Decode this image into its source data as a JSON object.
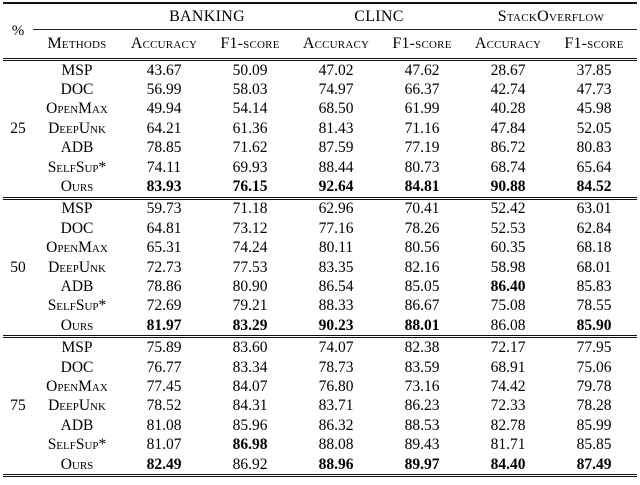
{
  "table": {
    "percent_label": "%",
    "methods_label": "Methods",
    "groups": [
      "BANKING",
      "CLINC",
      "StackOverflow"
    ],
    "subheaders": [
      "Accuracy",
      "F1-score"
    ],
    "blocks": [
      {
        "percent": "25",
        "rows": [
          {
            "method": "MSP",
            "values": [
              "43.67",
              "50.09",
              "47.02",
              "47.62",
              "28.67",
              "37.85"
            ]
          },
          {
            "method": "DOC",
            "values": [
              "56.99",
              "58.03",
              "74.97",
              "66.37",
              "42.74",
              "47.73"
            ]
          },
          {
            "method": "OpenMax",
            "values": [
              "49.94",
              "54.14",
              "68.50",
              "61.99",
              "40.28",
              "45.98"
            ]
          },
          {
            "method": "DeepUnk",
            "values": [
              "64.21",
              "61.36",
              "81.43",
              "71.16",
              "47.84",
              "52.05"
            ]
          },
          {
            "method": "ADB",
            "values": [
              "78.85",
              "71.62",
              "87.59",
              "77.19",
              "86.72",
              "80.83"
            ]
          },
          {
            "method": "SelfSup*",
            "values": [
              "74.11",
              "69.93",
              "88.44",
              "80.73",
              "68.74",
              "65.64"
            ]
          },
          {
            "method": "Ours",
            "values": [
              "83.93",
              "76.15",
              "92.64",
              "84.81",
              "90.88",
              "84.52"
            ]
          }
        ]
      },
      {
        "percent": "50",
        "rows": [
          {
            "method": "MSP",
            "values": [
              "59.73",
              "71.18",
              "62.96",
              "70.41",
              "52.42",
              "63.01"
            ]
          },
          {
            "method": "DOC",
            "values": [
              "64.81",
              "73.12",
              "77.16",
              "78.26",
              "52.53",
              "62.84"
            ]
          },
          {
            "method": "OpenMax",
            "values": [
              "65.31",
              "74.24",
              "80.11",
              "80.56",
              "60.35",
              "68.18"
            ]
          },
          {
            "method": "DeepUnk",
            "values": [
              "72.73",
              "77.53",
              "83.35",
              "82.16",
              "58.98",
              "68.01"
            ]
          },
          {
            "method": "ADB",
            "values": [
              "78.86",
              "80.90",
              "86.54",
              "85.05",
              "86.40",
              "85.83"
            ]
          },
          {
            "method": "SelfSup*",
            "values": [
              "72.69",
              "79.21",
              "88.33",
              "86.67",
              "75.08",
              "78.55"
            ]
          },
          {
            "method": "Ours",
            "values": [
              "81.97",
              "83.29",
              "90.23",
              "88.01",
              "86.08",
              "85.90"
            ]
          }
        ]
      },
      {
        "percent": "75",
        "rows": [
          {
            "method": "MSP",
            "values": [
              "75.89",
              "83.60",
              "74.07",
              "82.38",
              "72.17",
              "77.95"
            ]
          },
          {
            "method": "DOC",
            "values": [
              "76.77",
              "83.34",
              "78.73",
              "83.59",
              "68.91",
              "75.06"
            ]
          },
          {
            "method": "OpenMax",
            "values": [
              "77.45",
              "84.07",
              "76.80",
              "73.16",
              "74.42",
              "79.78"
            ]
          },
          {
            "method": "DeepUnk",
            "values": [
              "78.52",
              "84.31",
              "83.71",
              "86.23",
              "72.33",
              "78.28"
            ]
          },
          {
            "method": "ADB",
            "values": [
              "81.08",
              "85.96",
              "86.32",
              "88.53",
              "82.78",
              "85.99"
            ]
          },
          {
            "method": "SelfSup*",
            "values": [
              "81.07",
              "86.98",
              "88.08",
              "89.43",
              "81.71",
              "85.85"
            ]
          },
          {
            "method": "Ours",
            "values": [
              "82.49",
              "86.92",
              "88.96",
              "89.97",
              "84.40",
              "87.49"
            ]
          }
        ]
      }
    ]
  }
}
